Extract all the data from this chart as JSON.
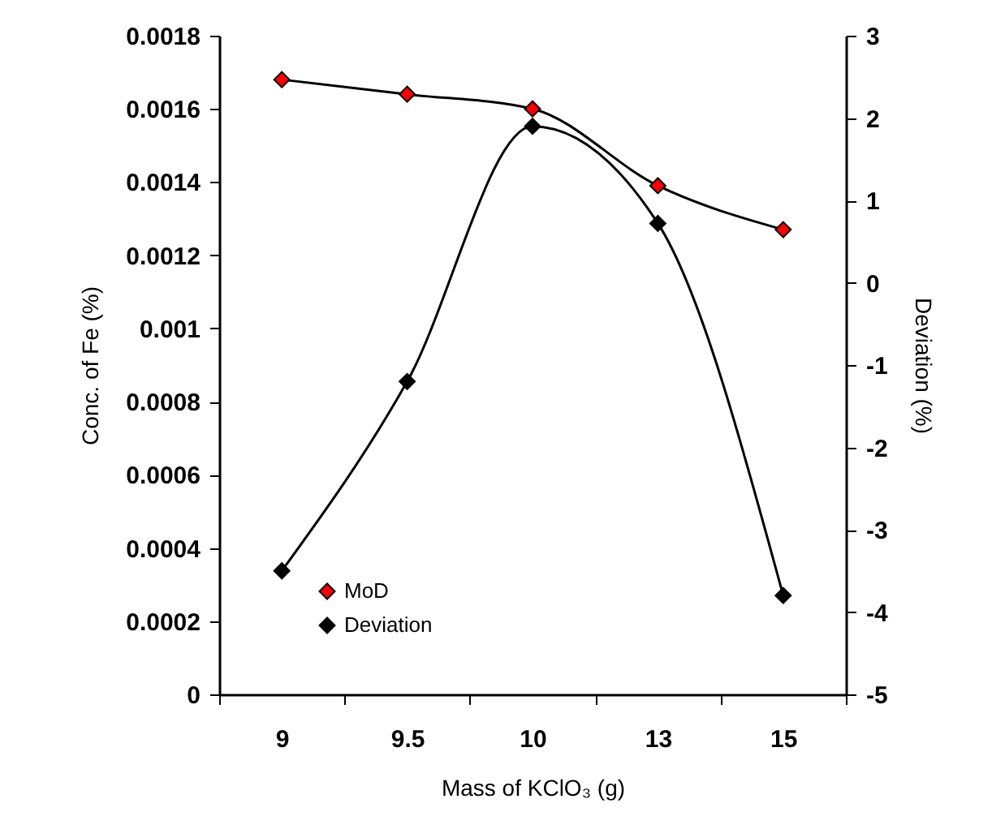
{
  "chart_data": {
    "type": "line",
    "xlabel": "Mass of KClO₃ (g)",
    "ylabel": "Conc. of Fe (%)",
    "y2label": "Deviation (%)",
    "categories": [
      "9",
      "9.5",
      "10",
      "13",
      "15"
    ],
    "series": [
      {
        "name": "MoD",
        "color": "#ff0000",
        "values": [
          0.00168,
          0.00164,
          0.0016,
          0.00139,
          0.00127
        ]
      },
      {
        "name": "Deviation",
        "color": "#000000",
        "axis": "y2",
        "values": [
          -3.5,
          -1.2,
          1.9,
          0.72,
          -3.8
        ]
      }
    ],
    "ylim": [
      0,
      0.0018
    ],
    "yticks": [
      0,
      0.0002,
      0.0004,
      0.0006,
      0.0008,
      0.001,
      0.0012,
      0.0014,
      0.0016,
      0.0018
    ],
    "y2lim": [
      -5,
      3
    ],
    "y2ticks": [
      -5,
      -4,
      -3,
      -2,
      -1,
      0,
      1,
      2,
      3
    ],
    "marker": "diamond",
    "line_style": "solid",
    "legend": "bottom left"
  }
}
